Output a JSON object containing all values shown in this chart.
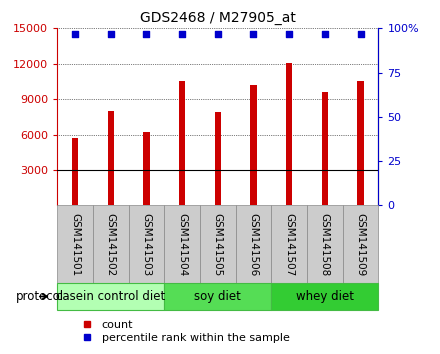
{
  "title": "GDS2468 / M27905_at",
  "samples": [
    "GSM141501",
    "GSM141502",
    "GSM141503",
    "GSM141504",
    "GSM141505",
    "GSM141506",
    "GSM141507",
    "GSM141508",
    "GSM141509"
  ],
  "counts": [
    5700,
    8000,
    6200,
    10500,
    7900,
    10200,
    12100,
    9600,
    10500
  ],
  "percentile_ranks": [
    97,
    97,
    97,
    97,
    97,
    97,
    97,
    97,
    97
  ],
  "ylim_left": [
    0,
    15000
  ],
  "ylim_right": [
    0,
    100
  ],
  "yticks_left": [
    3000,
    6000,
    9000,
    12000,
    15000
  ],
  "ytick_labels_left": [
    "3000",
    "6000",
    "9000",
    "12000",
    "15000"
  ],
  "yticks_right": [
    0,
    25,
    50,
    75,
    100
  ],
  "ytick_labels_right": [
    "0",
    "25",
    "50",
    "75",
    "100%"
  ],
  "bar_color": "#cc0000",
  "dot_color": "#0000cc",
  "groups": [
    {
      "label": "casein control diet",
      "samples": [
        0,
        1,
        2
      ],
      "color": "#b3ffb3",
      "edge_color": "#44bb44"
    },
    {
      "label": "soy diet",
      "samples": [
        3,
        4,
        5
      ],
      "color": "#55dd55",
      "edge_color": "#44bb44"
    },
    {
      "label": "whey diet",
      "samples": [
        6,
        7,
        8
      ],
      "color": "#33cc33",
      "edge_color": "#44bb44"
    }
  ],
  "protocol_label": "protocol",
  "legend_count_label": "count",
  "legend_pct_label": "percentile rank within the sample",
  "tick_area_color": "#cccccc",
  "left_yaxis_color": "#cc0000",
  "right_yaxis_color": "#0000cc",
  "title_fontsize": 10,
  "tick_fontsize": 8,
  "label_fontsize": 8,
  "group_fontsize": 8.5
}
